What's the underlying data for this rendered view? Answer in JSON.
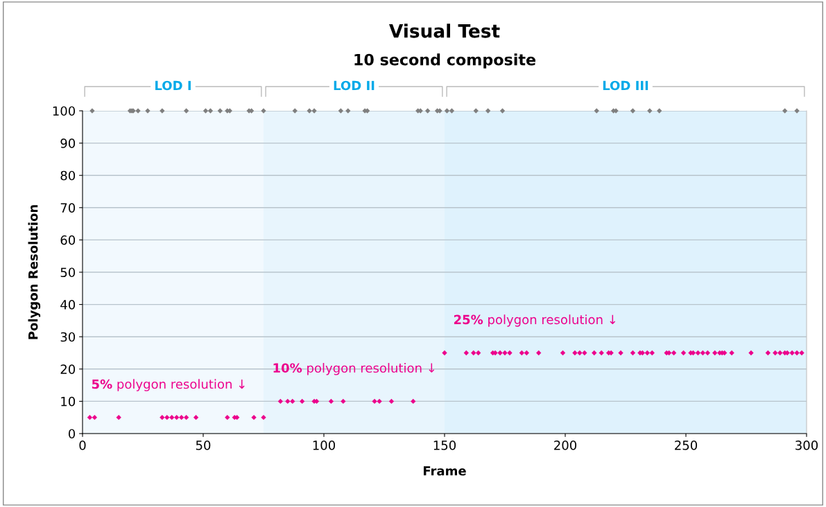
{
  "chart_data": {
    "type": "scatter",
    "title": "Visual Test",
    "subtitle": "10 second composite",
    "xlabel": "Frame",
    "ylabel": "Polygon Resolution",
    "xlim": [
      0,
      300
    ],
    "xticks": [
      0,
      50,
      100,
      150,
      200,
      250,
      300
    ],
    "ylim": [
      0,
      100
    ],
    "yticks": [
      0,
      10,
      20,
      30,
      40,
      50,
      60,
      70,
      80,
      90,
      100
    ],
    "grid": "y",
    "marker": "diamond",
    "series": [
      {
        "color": "#7f7f7f",
        "x": [
          4,
          19.7,
          20.4,
          21,
          23,
          27,
          33,
          43,
          51,
          53,
          57,
          60,
          61,
          69,
          70,
          75,
          88,
          94,
          96,
          107,
          110,
          117,
          118,
          139,
          140,
          143,
          147,
          148,
          151,
          153,
          163,
          168,
          174,
          213,
          220,
          221,
          228,
          235,
          239,
          291,
          296
        ],
        "values": [
          100,
          100,
          100,
          100,
          100,
          100,
          100,
          100,
          100,
          100,
          100,
          100,
          100,
          100,
          100,
          100,
          100,
          100,
          100,
          100,
          100,
          100,
          100,
          100,
          100,
          100,
          100,
          100,
          100,
          100,
          100,
          100,
          100,
          100,
          100,
          100,
          100,
          100,
          100,
          100,
          100
        ]
      },
      {
        "color": "#ec008c",
        "x": [
          3,
          5,
          15,
          33,
          35,
          37,
          39,
          41,
          43,
          47,
          60,
          63,
          64,
          71,
          75,
          82,
          85,
          87,
          91,
          96,
          97,
          103,
          108,
          121,
          123,
          128,
          137,
          150,
          159,
          162,
          164,
          170,
          171,
          173,
          175,
          177,
          182,
          184,
          189,
          199,
          204,
          206,
          208,
          212,
          215,
          218,
          219,
          223,
          228,
          231,
          232,
          234,
          236,
          242,
          243,
          245,
          249,
          252,
          253,
          255,
          257,
          259,
          262,
          264,
          265,
          266,
          269,
          277,
          284,
          287,
          289,
          291,
          292,
          294,
          296,
          298
        ],
        "values": [
          5,
          5,
          5,
          5,
          5,
          5,
          5,
          5,
          5,
          5,
          5,
          5,
          5,
          5,
          5,
          10,
          10,
          10,
          10,
          10,
          10,
          10,
          10,
          10,
          10,
          10,
          10,
          25,
          25,
          25,
          25,
          25,
          25,
          25,
          25,
          25,
          25,
          25,
          25,
          25,
          25,
          25,
          25,
          25,
          25,
          25,
          25,
          25,
          25,
          25,
          25,
          25,
          25,
          25,
          25,
          25,
          25,
          25,
          25,
          25,
          25,
          25,
          25,
          25,
          25,
          25,
          25,
          25,
          25,
          25,
          25,
          25,
          25,
          25,
          25,
          25
        ]
      }
    ],
    "bands": [
      {
        "axis": "x",
        "from": 0,
        "to": 75,
        "label": "LOD I",
        "color": "#f2f9fe"
      },
      {
        "axis": "x",
        "from": 75,
        "to": 150,
        "label": "LOD II",
        "color": "#e8f5fd"
      },
      {
        "axis": "x",
        "from": 150,
        "to": 300,
        "label": "LOD III",
        "color": "#dff2fd"
      }
    ],
    "annotations": [
      "5% polygon resolution ↓",
      "10% polygon resolution ↓",
      "25% polygon resolution ↓"
    ]
  }
}
